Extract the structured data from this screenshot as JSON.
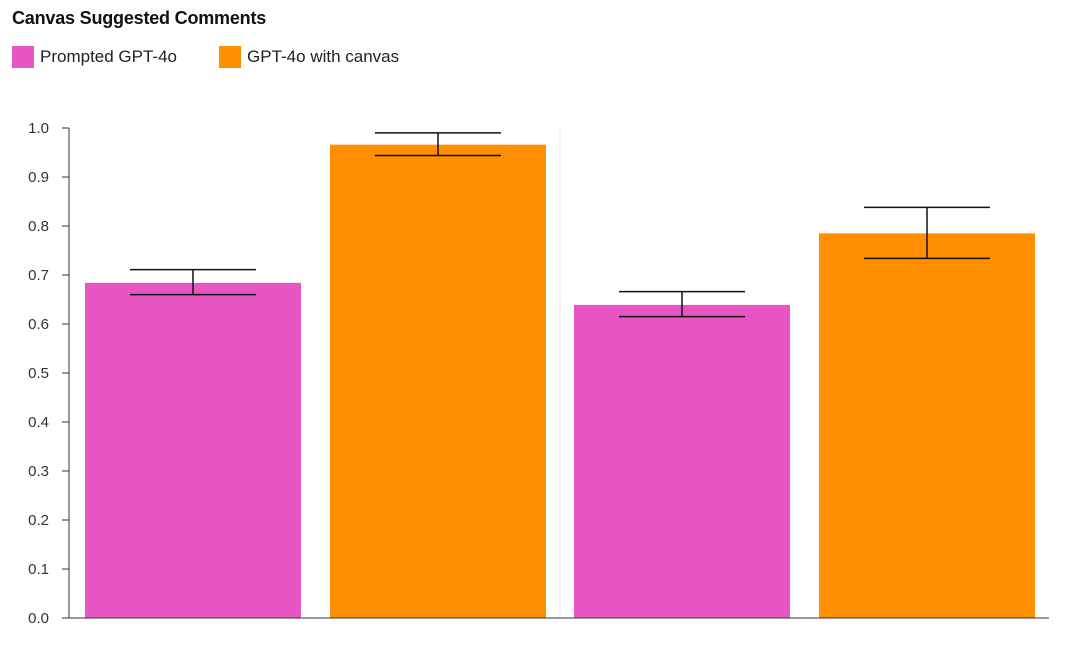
{
  "chart_data": {
    "type": "bar",
    "title": "Canvas Suggested Comments",
    "categories": [
      "",
      ""
    ],
    "series": [
      {
        "name": "Prompted GPT-4o",
        "color": "#e655c3",
        "values": [
          0.684,
          0.639
        ],
        "error_low": [
          0.66,
          0.615
        ],
        "error_high": [
          0.711,
          0.666
        ]
      },
      {
        "name": "GPT-4o with canvas",
        "color": "#ff8f00",
        "values": [
          0.966,
          0.785
        ],
        "error_low": [
          0.944,
          0.734
        ],
        "error_high": [
          0.99,
          0.838
        ]
      }
    ],
    "ylim": [
      0,
      1.0
    ],
    "yticks": [
      "0.0",
      "0.1",
      "0.2",
      "0.3",
      "0.4",
      "0.5",
      "0.6",
      "0.7",
      "0.8",
      "0.9",
      "1.0"
    ],
    "xlabel": "",
    "ylabel": "",
    "grid": false,
    "legend_position": "top-left"
  }
}
